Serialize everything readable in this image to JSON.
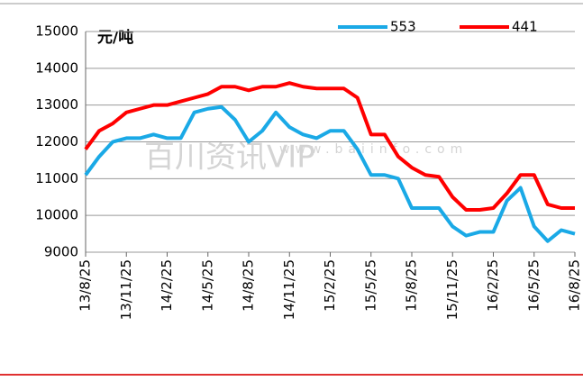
{
  "chart_data": {
    "type": "line",
    "y_label": "元/吨",
    "watermark": [
      "百川资讯VIP",
      "www.baiinfo.com"
    ],
    "categories": [
      "13/8/25",
      null,
      null,
      "13/11/25",
      null,
      null,
      "14/2/25",
      null,
      null,
      "14/5/25",
      null,
      null,
      "14/8/25",
      null,
      null,
      "14/11/25",
      null,
      null,
      "15/2/25",
      null,
      null,
      "15/5/25",
      null,
      null,
      "15/8/25",
      null,
      null,
      "15/11/25",
      null,
      null,
      "16/2/25",
      null,
      null,
      "16/5/25",
      null,
      null,
      "16/8/25"
    ],
    "series": [
      {
        "name": "553",
        "color": "#1aa9e6",
        "values": [
          11100,
          11600,
          12000,
          12100,
          12100,
          12200,
          12100,
          12100,
          12800,
          12900,
          12950,
          12600,
          12000,
          12300,
          12800,
          12400,
          12200,
          12100,
          12300,
          12300,
          11800,
          11100,
          11100,
          11000,
          10200,
          10200,
          10200,
          9700,
          9450,
          9550,
          9550,
          10400,
          10750,
          9700,
          9300,
          9600,
          9500
        ]
      },
      {
        "name": "441",
        "color": "#ff0000",
        "values": [
          11800,
          12300,
          12500,
          12800,
          12900,
          13000,
          13000,
          13100,
          13200,
          13300,
          13500,
          13500,
          13400,
          13500,
          13500,
          13600,
          13500,
          13450,
          13450,
          13450,
          13200,
          12200,
          12200,
          11600,
          11300,
          11100,
          11050,
          10500,
          10150,
          10150,
          10200,
          10600,
          11100,
          11100,
          10300,
          10200,
          10200
        ]
      }
    ],
    "ylim": [
      9000,
      15000
    ],
    "yticks": [
      9000,
      10000,
      11000,
      12000,
      13000,
      14000,
      15000
    ],
    "grid": true,
    "legend": "top"
  }
}
